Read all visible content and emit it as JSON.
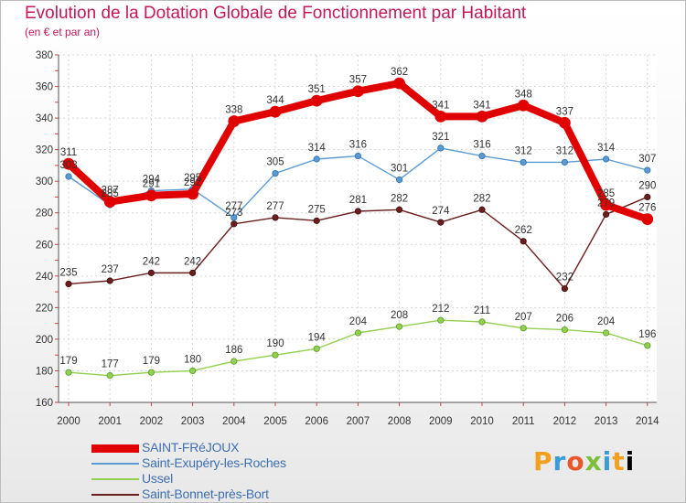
{
  "chart_data": {
    "type": "line",
    "title": "Evolution de la Dotation Globale de Fonctionnement par Habitant",
    "subtitle": "(en € et par an)",
    "xlabel": "",
    "ylabel": "",
    "x": [
      "2000",
      "2001",
      "2002",
      "2003",
      "2004",
      "2005",
      "2006",
      "2007",
      "2008",
      "2009",
      "2010",
      "2011",
      "2012",
      "2013",
      "2014"
    ],
    "ylim": [
      160,
      380
    ],
    "yticks": [
      160,
      180,
      200,
      220,
      240,
      260,
      280,
      300,
      320,
      340,
      360,
      380
    ],
    "grid": true,
    "legend_position": "bottom-left",
    "series": [
      {
        "name": "SAINT-FRéJOUX",
        "color": "#e00000",
        "values": [
          311,
          287,
          291,
          292,
          338,
          344,
          351,
          357,
          362,
          341,
          341,
          348,
          337,
          285,
          276
        ]
      },
      {
        "name": "Saint-Exupéry-les-Roches",
        "color": "#5b9bd5",
        "values": [
          303,
          285,
          294,
          295,
          277,
          305,
          314,
          316,
          301,
          321,
          316,
          312,
          312,
          314,
          307
        ]
      },
      {
        "name": "Ussel",
        "color": "#92d050",
        "values": [
          179,
          177,
          179,
          180,
          186,
          190,
          194,
          204,
          208,
          212,
          211,
          207,
          206,
          204,
          196
        ]
      },
      {
        "name": "Saint-Bonnet-près-Bort",
        "color": "#6b1e1e",
        "values": [
          235,
          237,
          242,
          242,
          273,
          277,
          275,
          281,
          282,
          274,
          282,
          262,
          232,
          279,
          290
        ]
      }
    ]
  },
  "logo": {
    "letters": [
      "P",
      "r",
      "o",
      "x",
      "i",
      "t",
      "i"
    ]
  }
}
